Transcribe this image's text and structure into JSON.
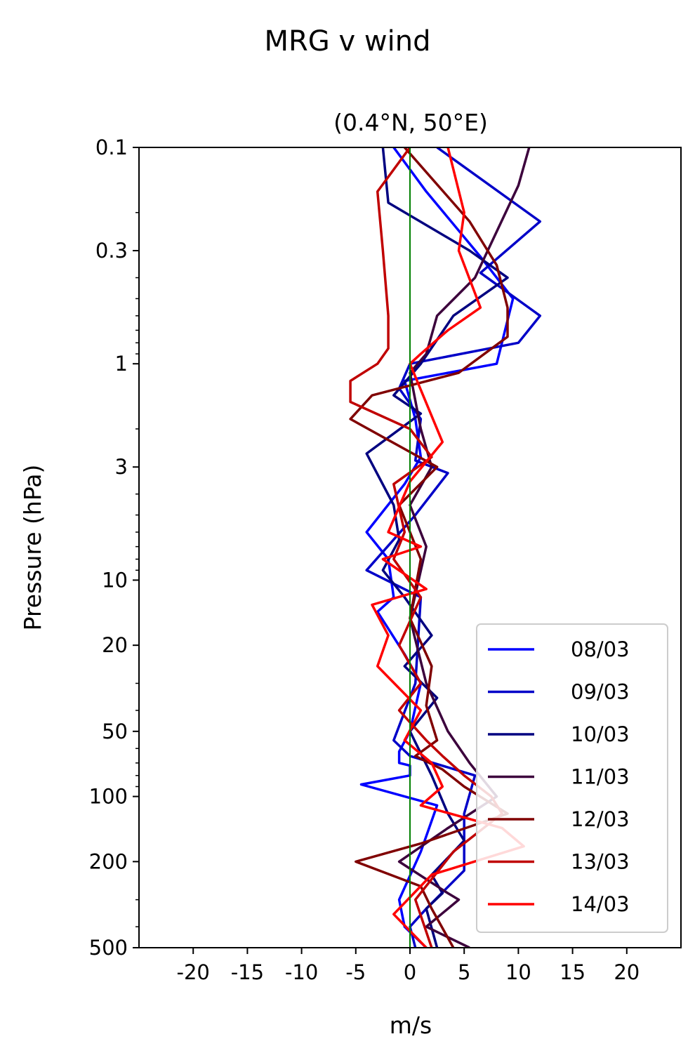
{
  "chart_data": {
    "type": "line",
    "title": "MRG v wind",
    "subtitle": "(0.4°N, 50°E)",
    "xlabel": "m/s",
    "ylabel": "Pressure (hPa)",
    "xlim": [
      -25,
      25
    ],
    "ylim": [
      500,
      0.1
    ],
    "yscale": "log",
    "xticks": [
      -20,
      -15,
      -10,
      -5,
      0,
      5,
      10,
      15,
      20
    ],
    "xtick_labels": [
      "-20",
      "-15",
      "-10",
      "-5",
      "0",
      "5",
      "10",
      "15",
      "20"
    ],
    "yticks": [
      0.1,
      0.3,
      1,
      3,
      10,
      20,
      50,
      100,
      200,
      500
    ],
    "ytick_labels": [
      "0.1",
      "0.3",
      "1",
      "3",
      "10",
      "20",
      "50",
      "100",
      "200",
      "500"
    ],
    "reference_line": {
      "x": 0,
      "color": "#008000"
    },
    "legend_position": "bottom-right",
    "series": [
      {
        "name": "08/03",
        "color": "#0000ff",
        "x": [
          -1.5,
          1.5,
          6.5,
          9.5,
          8.0,
          -0.5,
          0.5,
          1.0,
          -0.5,
          -4.0,
          -2.0,
          -1.5,
          -3.0,
          -0.5,
          1.0,
          0.0,
          -1.0,
          -1.0,
          0.0,
          0.0,
          -4.5,
          2.5,
          1.0,
          -1.0,
          -0.5,
          1.5
        ],
        "y": [
          0.1,
          0.16,
          0.32,
          0.5,
          1.0,
          1.2,
          1.8,
          2.7,
          3.6,
          6.0,
          8.0,
          12.0,
          14.0,
          22.0,
          30.0,
          50.0,
          62.0,
          70.0,
          72.0,
          80.0,
          88.0,
          110.0,
          180.0,
          300.0,
          400.0,
          500.0
        ]
      },
      {
        "name": "09/03",
        "color": "#0000c8",
        "x": [
          2.5,
          12.0,
          6.5,
          12.0,
          10.0,
          0.0,
          -1.0,
          1.0,
          0.5,
          3.5,
          0.5,
          -4.0,
          1.0,
          0.5,
          -1.5,
          0.0,
          6.0,
          5.0,
          5.0,
          1.5,
          0.0,
          0.5
        ],
        "y": [
          0.1,
          0.22,
          0.38,
          0.6,
          0.8,
          1.0,
          1.3,
          1.8,
          2.8,
          3.2,
          5.0,
          9.0,
          12.0,
          30.0,
          55.0,
          65.0,
          80.0,
          120.0,
          220.0,
          330.0,
          400.0,
          500.0
        ]
      },
      {
        "name": "10/03",
        "color": "#000080",
        "x": [
          -2.5,
          -2.0,
          5.5,
          9.0,
          4.0,
          1.0,
          -1.5,
          1.0,
          -4.0,
          -1.5,
          -1.0,
          -2.5,
          -0.5,
          2.0,
          -0.5,
          2.5,
          0.0,
          2.0,
          3.5,
          5.0,
          2.0,
          3.0,
          1.5,
          2.5
        ],
        "y": [
          0.1,
          0.18,
          0.3,
          0.4,
          0.6,
          1.0,
          1.4,
          1.7,
          2.6,
          4.5,
          6.5,
          9.0,
          12.0,
          18.0,
          25.0,
          35.0,
          50.0,
          80.0,
          120.0,
          160.0,
          230.0,
          280.0,
          330.0,
          500.0
        ]
      },
      {
        "name": "11/03",
        "color": "#3c003c",
        "x": [
          11.0,
          10.0,
          6.0,
          2.5,
          1.5,
          0.0,
          1.0,
          2.0,
          0.0,
          1.5,
          0.0,
          1.5,
          3.5,
          5.5,
          8.0,
          3.5,
          -1.0,
          3.5,
          4.5,
          1.5,
          5.5
        ],
        "y": [
          0.1,
          0.15,
          0.4,
          0.6,
          0.9,
          1.1,
          2.0,
          3.0,
          4.5,
          7.0,
          15.0,
          30.0,
          50.0,
          70.0,
          100.0,
          140.0,
          200.0,
          280.0,
          300.0,
          400.0,
          500.0
        ]
      },
      {
        "name": "12/03",
        "color": "#800000",
        "x": [
          -0.5,
          5.5,
          8.0,
          9.0,
          9.0,
          4.5,
          -3.5,
          -5.5,
          2.5,
          -1.0,
          1.0,
          0.0,
          2.0,
          1.5,
          2.5,
          0.5,
          3.0,
          5.0,
          9.0,
          1.0,
          -5.0,
          1.0,
          2.0,
          4.0
        ],
        "y": [
          0.1,
          0.22,
          0.35,
          0.55,
          0.75,
          1.1,
          1.4,
          1.8,
          3.0,
          4.5,
          8.0,
          15.0,
          25.0,
          38.0,
          55.0,
          65.0,
          75.0,
          90.0,
          120.0,
          165.0,
          200.0,
          260.0,
          330.0,
          500.0
        ]
      },
      {
        "name": "13/03",
        "color": "#c00000",
        "x": [
          0.0,
          -3.0,
          -2.5,
          -2.0,
          -2.0,
          -3.0,
          -5.5,
          -5.5,
          0.0,
          2.0,
          -1.5,
          -0.5,
          -1.5,
          1.0,
          -1.0,
          1.0,
          -1.0,
          1.5,
          3.0,
          5.0,
          7.5,
          8.5,
          4.0,
          0.5,
          2.0
        ],
        "y": [
          0.1,
          0.16,
          0.3,
          0.6,
          0.85,
          1.0,
          1.2,
          1.5,
          2.0,
          2.7,
          3.6,
          6.0,
          8.0,
          12.0,
          20.0,
          30.0,
          40.0,
          55.0,
          65.0,
          80.0,
          100.0,
          120.0,
          180.0,
          300.0,
          500.0
        ]
      },
      {
        "name": "14/03",
        "color": "#ff0000",
        "x": [
          3.5,
          5.0,
          4.5,
          6.5,
          3.5,
          1.0,
          0.0,
          3.0,
          0.0,
          -2.0,
          1.0,
          -2.5,
          1.5,
          -3.5,
          -2.0,
          -3.0,
          1.0,
          -0.5,
          2.0,
          3.0,
          1.0,
          8.5,
          10.5,
          2.0,
          -1.5,
          1.5
        ],
        "y": [
          0.1,
          0.2,
          0.3,
          0.55,
          0.7,
          0.9,
          1.0,
          2.3,
          3.5,
          6.0,
          7.0,
          8.0,
          11.0,
          13.0,
          18.0,
          25.0,
          40.0,
          55.0,
          70.0,
          90.0,
          110.0,
          140.0,
          170.0,
          230.0,
          350.0,
          500.0
        ]
      }
    ]
  }
}
